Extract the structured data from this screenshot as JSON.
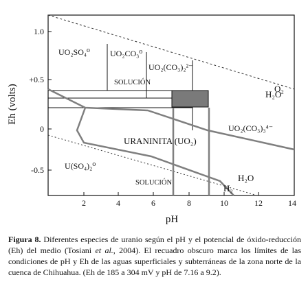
{
  "diagram": {
    "y_axis_label": "Eh (volts)",
    "x_axis_label": "pH",
    "x_ticks": [
      "2",
      "4",
      "6",
      "8",
      "10",
      "12",
      "14"
    ],
    "y_ticks": [
      "1.0",
      "+0.5",
      "0",
      "-0.5"
    ],
    "regions": {
      "uo2so4": "UO₂SO₄⁰",
      "uo2co3": "UO₂CO₃⁰",
      "uo2co32": "UO₂(CO₃)₂²⁻",
      "solucion_top": "SOLUCIÓN",
      "uraninita": "URANINITA (UO₂)",
      "uo2co33": "UO₂(CO₃)₃⁴⁻",
      "uso42": "U(SO₄)₂⁰",
      "solucion_bottom": "SOLUCIÓN"
    },
    "water_labels": {
      "o2": "O₂",
      "h2o_top": "H₂O",
      "h2o_bottom": "H₂O",
      "h2": "H₂"
    },
    "shaded_box": {
      "ph_min": 7.16,
      "ph_max": 9.2,
      "eh_min_mV": 185,
      "eh_max_mV": 304,
      "color": "#7a7a7a"
    }
  },
  "caption": {
    "fig_label": "Figura 8.",
    "part1": " Diferentes especies de uranio según el pH y el potencial de óxido-reducción (Eh) del medio (Tosiani ",
    "et_al": "et al.",
    "part2": ", 2004). El recuadro obscuro marca los límites de las condiciones de pH y Eh de las aguas superficiales y subterráneas de la zona norte de la cuenca de Chihuahua. (Eh de 185 a 304 mV y pH de 7.16 a 9.2)."
  }
}
